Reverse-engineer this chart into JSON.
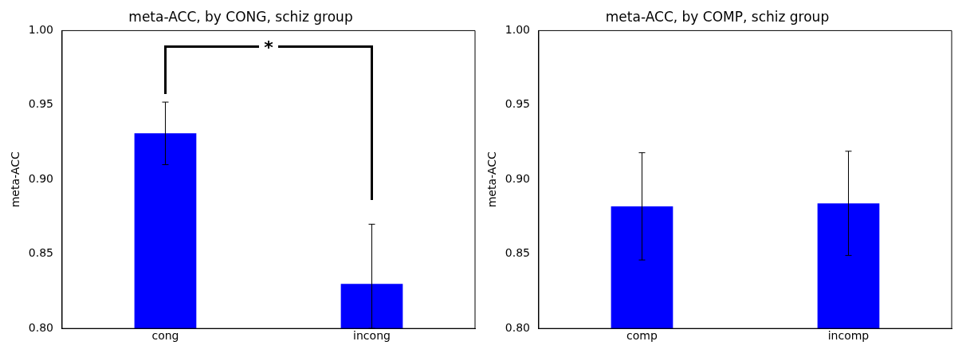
{
  "chart_data": [
    {
      "type": "bar",
      "title": "meta-ACC, by CONG, schiz group",
      "ylabel": "meta-ACC",
      "categories": [
        "cong",
        "incong"
      ],
      "values": [
        0.931,
        0.83
      ],
      "errors": [
        0.021,
        [
          0.8,
          0.87
        ]
      ],
      "color": "#0000ff",
      "ylim": [
        0.8,
        1.0
      ],
      "yticks": [
        {
          "value": 0.8,
          "label": "0.80"
        },
        {
          "value": 0.85,
          "label": "0.85"
        },
        {
          "value": 0.9,
          "label": "0.90"
        },
        {
          "value": 0.95,
          "label": "0.95"
        },
        {
          "value": 1,
          "label": "1.00"
        }
      ],
      "grid": false,
      "legend": false,
      "annotations": [
        "*"
      ]
    },
    {
      "type": "bar",
      "title": "meta-ACC, by COMP, schiz group",
      "ylabel": "meta-ACC",
      "categories": [
        "comp",
        "incomp"
      ],
      "values": [
        0.882,
        0.884
      ],
      "errors": [
        [
          0.846,
          0.918
        ],
        [
          0.849,
          0.919
        ]
      ],
      "color": "#0000ff",
      "ylim": [
        0.8,
        1.0
      ],
      "yticks": [
        {
          "value": 0.8,
          "label": "0.80"
        },
        {
          "value": 0.85,
          "label": "0.85"
        },
        {
          "value": 0.9,
          "label": "0.90"
        },
        {
          "value": 0.95,
          "label": "0.95"
        },
        {
          "value": 1,
          "label": "1.00"
        }
      ],
      "grid": false,
      "legend": false
    }
  ]
}
